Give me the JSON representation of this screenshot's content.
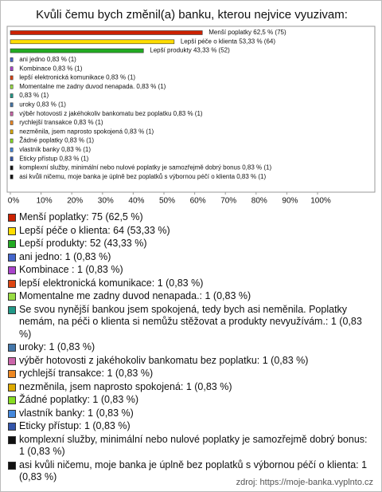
{
  "chart_data": {
    "type": "bar",
    "orientation": "horizontal",
    "title": "Kvůli čemu bych změnil(a) banku, kterou nejvice vyuzivam:",
    "values": [
      62.5,
      53.33,
      43.33,
      0.83,
      0.83,
      0.83,
      0.83,
      0.83,
      0.83,
      0.83,
      0.83,
      0.83,
      0.83,
      0.83,
      0.83,
      0.83,
      0.83
    ],
    "value_labels": [
      "Menší poplatky 62,5 % (75)",
      "Lepší péče o klienta 53,33 % (64)",
      "Lepší produkty 43,33 % (52)",
      "ani jedno 0,83 % (1)",
      "Kombinace  0,83 % (1)",
      "lepší elektronická komunikace 0,83 % (1)",
      "Momentalne me zadny duvod nenapada. 0,83 % (1)",
      "0,83 % (1)",
      "uroky 0,83 % (1)",
      "výběr hotovosti z jakéhokoliv bankomatu bez poplatku 0,83 % (1)",
      "rychlejší transakce 0,83 % (1)",
      "nezměnila, jsem naprosto spokojená 0,83 % (1)",
      "Žádné poplatky 0,83 % (1)",
      "vlastník banky 0,83 % (1)",
      "Eticky přístup 0,83 % (1)",
      "komplexní služby,  minimální nebo nulové poplatky  je  samozřejmě  dobrý  bonus 0,83 % (1)",
      "asi kvůli ničemu, moje banka je úplně bez poplatků s výbornou péčí o klienta 0,83 % (1)"
    ],
    "legend": [
      "Menší poplatky: 75 (62,5 %)",
      "Lepší péče o klienta: 64 (53,33 %)",
      "Lepší produkty: 52 (43,33 %)",
      "ani jedno: 1 (0,83 %)",
      "Kombinace : 1 (0,83 %)",
      "lepší elektronická komunikace: 1 (0,83 %)",
      "Momentalne me zadny duvod nenapada.: 1 (0,83 %)",
      "Se svou nynější bankou jsem spokojená, tedy bych asi neměnila. Poplatky nemám, na péči o klienta si nemůžu stěžovat a produkty nevyužívám.: 1 (0,83 %)",
      "uroky: 1 (0,83 %)",
      "výběr hotovosti z jakéhokoliv bankomatu bez poplatku: 1 (0,83 %)",
      "rychlejší transakce: 1 (0,83 %)",
      "nezměnila, jsem naprosto spokojená: 1 (0,83 %)",
      "Žádné poplatky: 1 (0,83 %)",
      "vlastník banky: 1 (0,83 %)",
      "Eticky přístup: 1 (0,83 %)",
      "komplexní služby,  minimální nebo nulové poplatky  je  samozřejmě  dobrý  bonus: 1 (0,83 %)",
      "asi kvůli ničemu, moje banka je úplně bez poplatků s výbornou péčí o klienta: 1 (0,83 %)"
    ],
    "colors": [
      "#cc2200",
      "#ffdd00",
      "#22aa22",
      "#4466cc",
      "#aa44cc",
      "#dd4411",
      "#99dd44",
      "#229988",
      "#4477aa",
      "#cc66aa",
      "#ee8822",
      "#ddaa00",
      "#88dd22",
      "#4488dd",
      "#3355aa",
      "#111111",
      "#111111"
    ],
    "xlim": [
      0,
      100
    ],
    "xticks": [
      {
        "value": 0,
        "label": "0%"
      },
      {
        "value": 10,
        "label": "10%"
      },
      {
        "value": 20,
        "label": "20%"
      },
      {
        "value": 30,
        "label": "30%"
      },
      {
        "value": 40,
        "label": "40%"
      },
      {
        "value": 50,
        "label": "50%"
      },
      {
        "value": 60,
        "label": "60%"
      },
      {
        "value": 70,
        "label": "70%"
      },
      {
        "value": 80,
        "label": "80%"
      },
      {
        "value": 90,
        "label": "90%"
      },
      {
        "value": 100,
        "label": "100%"
      }
    ],
    "source": "zdroj: https://moje-banka.vyplnto.cz"
  }
}
